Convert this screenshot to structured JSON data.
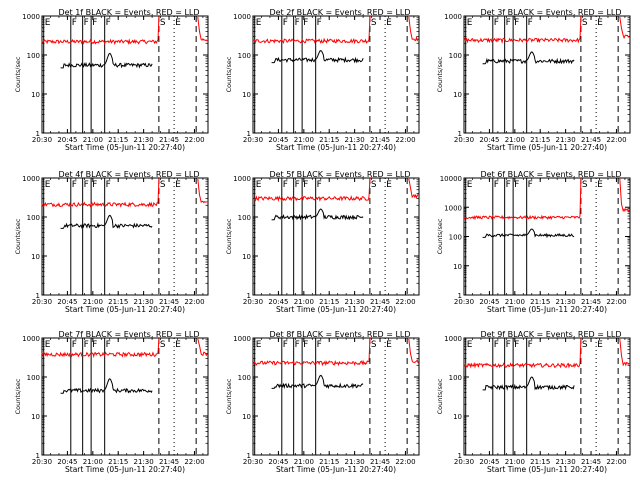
{
  "chart_data": [
    {
      "type": "line",
      "title": "Det 1f BLACK = Events, RED = LLD",
      "xlabel": "Start Time (05-Jun-11 20:27:40)",
      "ylabel": "Counts/sec",
      "ylim": [
        1,
        1000
      ],
      "yscale": "log",
      "xlim": [
        "20:30",
        "22:08"
      ],
      "x_ticks": [
        "20:30",
        "20:45",
        "21:00",
        "21:15",
        "21:30",
        "21:45",
        "22:00"
      ],
      "y_ticks": [
        "1",
        "10",
        "100",
        "1000"
      ],
      "markers": [
        {
          "label": "E",
          "x": "20:31"
        },
        {
          "label": "F",
          "x": "20:47"
        },
        {
          "label": "F",
          "x": "20:54"
        },
        {
          "label": "F",
          "x": "20:59"
        },
        {
          "label": "F",
          "x": "21:07"
        },
        {
          "label": "S",
          "x": "21:39"
        },
        {
          "label": "E",
          "x": "21:48"
        }
      ],
      "series": [
        {
          "name": "RED = LLD",
          "color": "#ff0000",
          "base": 220,
          "x": [
            "20:30",
            "21:38"
          ],
          "spike": {
            "x": "21:39",
            "peak": 900
          },
          "after": {
            "x": "22:04",
            "value": 250
          }
        },
        {
          "name": "BLACK = Events",
          "color": "#000000",
          "base": 55,
          "x": [
            "20:41",
            "21:35"
          ],
          "bump": {
            "x": "21:10",
            "peak": 110
          }
        }
      ]
    },
    {
      "type": "line",
      "title": "Det 2f BLACK = Events, RED = LLD",
      "xlabel": "Start Time (05-Jun-11 20:27:40)",
      "ylabel": "Counts/sec",
      "ylim": [
        1,
        1000
      ],
      "yscale": "log",
      "xlim": [
        "20:30",
        "22:08"
      ],
      "x_ticks": [
        "20:30",
        "20:45",
        "21:00",
        "21:15",
        "21:30",
        "21:45",
        "22:00"
      ],
      "y_ticks": [
        "1",
        "10",
        "100",
        "1000"
      ],
      "markers": [
        {
          "label": "E",
          "x": "20:31"
        },
        {
          "label": "F",
          "x": "20:47"
        },
        {
          "label": "F",
          "x": "20:54"
        },
        {
          "label": "F",
          "x": "20:59"
        },
        {
          "label": "F",
          "x": "21:07"
        },
        {
          "label": "S",
          "x": "21:39"
        },
        {
          "label": "E",
          "x": "21:48"
        }
      ],
      "series": [
        {
          "name": "RED = LLD",
          "color": "#ff0000",
          "base": 230,
          "x": [
            "20:30",
            "21:38"
          ],
          "spike": {
            "x": "21:39",
            "peak": 900
          },
          "after": {
            "x": "22:04",
            "value": 260
          }
        },
        {
          "name": "BLACK = Events",
          "color": "#000000",
          "base": 75,
          "x": [
            "20:41",
            "21:35"
          ],
          "bump": {
            "x": "21:10",
            "peak": 130
          }
        }
      ]
    },
    {
      "type": "line",
      "title": "Det 3f BLACK = Events, RED = LLD",
      "xlabel": "Start Time (05-Jun-11 20:27:40)",
      "ylabel": "Counts/sec",
      "ylim": [
        1,
        1000
      ],
      "yscale": "log",
      "xlim": [
        "20:30",
        "22:08"
      ],
      "x_ticks": [
        "20:30",
        "20:45",
        "21:00",
        "21:15",
        "21:30",
        "21:45",
        "22:00"
      ],
      "y_ticks": [
        "1",
        "10",
        "100",
        "1000"
      ],
      "markers": [
        {
          "label": "E",
          "x": "20:31"
        },
        {
          "label": "F",
          "x": "20:47"
        },
        {
          "label": "F",
          "x": "20:54"
        },
        {
          "label": "F",
          "x": "20:59"
        },
        {
          "label": "F",
          "x": "21:07"
        },
        {
          "label": "S",
          "x": "21:39"
        },
        {
          "label": "E",
          "x": "21:48"
        }
      ],
      "series": [
        {
          "name": "RED = LLD",
          "color": "#ff0000",
          "base": 240,
          "x": [
            "20:30",
            "21:38"
          ],
          "spike": {
            "x": "21:39",
            "peak": 900
          },
          "after": {
            "x": "22:04",
            "value": 300
          }
        },
        {
          "name": "BLACK = Events",
          "color": "#000000",
          "base": 70,
          "x": [
            "20:41",
            "21:35"
          ],
          "bump": {
            "x": "21:10",
            "peak": 120
          }
        }
      ]
    },
    {
      "type": "line",
      "title": "Det 4f BLACK = Events, RED = LLD",
      "xlabel": "Start Time (05-Jun-11 20:27:40)",
      "ylabel": "Counts/sec",
      "ylim": [
        1,
        1000
      ],
      "yscale": "log",
      "xlim": [
        "20:30",
        "22:08"
      ],
      "x_ticks": [
        "20:30",
        "20:45",
        "21:00",
        "21:15",
        "21:30",
        "21:45",
        "22:00"
      ],
      "y_ticks": [
        "1",
        "10",
        "100",
        "1000"
      ],
      "markers": [
        {
          "label": "E",
          "x": "20:31"
        },
        {
          "label": "F",
          "x": "20:47"
        },
        {
          "label": "F",
          "x": "20:54"
        },
        {
          "label": "F",
          "x": "20:59"
        },
        {
          "label": "F",
          "x": "21:07"
        },
        {
          "label": "S",
          "x": "21:39"
        },
        {
          "label": "E",
          "x": "21:48"
        }
      ],
      "series": [
        {
          "name": "RED = LLD",
          "color": "#ff0000",
          "base": 210,
          "x": [
            "20:30",
            "21:38"
          ],
          "spike": {
            "x": "21:39",
            "peak": 900
          },
          "after": {
            "x": "22:04",
            "value": 230
          }
        },
        {
          "name": "BLACK = Events",
          "color": "#000000",
          "base": 60,
          "x": [
            "20:41",
            "21:35"
          ],
          "bump": {
            "x": "21:10",
            "peak": 110
          }
        }
      ]
    },
    {
      "type": "line",
      "title": "Det 5f BLACK = Events, RED = LLD",
      "xlabel": "Start Time (05-Jun-11 20:27:40)",
      "ylabel": "Counts/sec",
      "ylim": [
        1,
        1000
      ],
      "yscale": "log",
      "xlim": [
        "20:30",
        "22:08"
      ],
      "x_ticks": [
        "20:30",
        "20:45",
        "21:00",
        "21:15",
        "21:30",
        "21:45",
        "22:00"
      ],
      "y_ticks": [
        "1",
        "10",
        "100",
        "1000"
      ],
      "markers": [
        {
          "label": "E",
          "x": "20:31"
        },
        {
          "label": "F",
          "x": "20:47"
        },
        {
          "label": "F",
          "x": "20:54"
        },
        {
          "label": "F",
          "x": "20:59"
        },
        {
          "label": "F",
          "x": "21:07"
        },
        {
          "label": "S",
          "x": "21:39"
        },
        {
          "label": "E",
          "x": "21:48"
        }
      ],
      "series": [
        {
          "name": "RED = LLD",
          "color": "#ff0000",
          "base": 300,
          "x": [
            "20:30",
            "21:38"
          ],
          "spike": {
            "x": "21:39",
            "peak": 900
          },
          "after": {
            "x": "22:04",
            "value": 350
          }
        },
        {
          "name": "BLACK = Events",
          "color": "#000000",
          "base": 100,
          "x": [
            "20:41",
            "21:35"
          ],
          "bump": {
            "x": "21:10",
            "peak": 160
          }
        }
      ]
    },
    {
      "type": "line",
      "title": "Det 6f BLACK = Events, RED = LLD",
      "xlabel": "Start Time (05-Jun-11 20:27:40)",
      "ylabel": "Counts/sec",
      "ylim": [
        1,
        10000
      ],
      "yscale": "log",
      "xlim": [
        "20:30",
        "22:08"
      ],
      "x_ticks": [
        "20:30",
        "20:45",
        "21:00",
        "21:15",
        "21:30",
        "21:45",
        "22:00"
      ],
      "y_ticks": [
        "1",
        "10",
        "100",
        "1000",
        "10000"
      ],
      "markers": [
        {
          "label": "E",
          "x": "20:31"
        },
        {
          "label": "F",
          "x": "20:47"
        },
        {
          "label": "F",
          "x": "20:54"
        },
        {
          "label": "F",
          "x": "20:59"
        },
        {
          "label": "F",
          "x": "21:07"
        },
        {
          "label": "S",
          "x": "21:39"
        },
        {
          "label": "E",
          "x": "21:48"
        }
      ],
      "series": [
        {
          "name": "RED = LLD",
          "color": "#ff0000",
          "base": 450,
          "x": [
            "20:30",
            "21:38"
          ],
          "spike": {
            "x": "21:39",
            "peak": 9000
          },
          "after": {
            "x": "22:04",
            "value": 800
          }
        },
        {
          "name": "BLACK = Events",
          "color": "#000000",
          "base": 110,
          "x": [
            "20:41",
            "21:35"
          ],
          "bump": {
            "x": "21:10",
            "peak": 180
          }
        }
      ]
    },
    {
      "type": "line",
      "title": "Det 7f BLACK = Events, RED = LLD",
      "xlabel": "Start Time (05-Jun-11 20:27:40)",
      "ylabel": "Counts/sec",
      "ylim": [
        1,
        1000
      ],
      "yscale": "log",
      "xlim": [
        "20:30",
        "22:08"
      ],
      "x_ticks": [
        "20:30",
        "20:45",
        "21:00",
        "21:15",
        "21:30",
        "21:45",
        "22:00"
      ],
      "y_ticks": [
        "1",
        "10",
        "100",
        "1000"
      ],
      "markers": [
        {
          "label": "E",
          "x": "20:31"
        },
        {
          "label": "F",
          "x": "20:47"
        },
        {
          "label": "F",
          "x": "20:54"
        },
        {
          "label": "F",
          "x": "20:59"
        },
        {
          "label": "F",
          "x": "21:07"
        },
        {
          "label": "S",
          "x": "21:39"
        },
        {
          "label": "E",
          "x": "21:48"
        }
      ],
      "series": [
        {
          "name": "RED = LLD",
          "color": "#ff0000",
          "base": 380,
          "x": [
            "20:30",
            "21:38"
          ],
          "spike": {
            "x": "21:39",
            "peak": 900
          },
          "after": {
            "x": "22:04",
            "value": 400
          }
        },
        {
          "name": "BLACK = Events",
          "color": "#000000",
          "base": 45,
          "x": [
            "20:41",
            "21:35"
          ],
          "bump": {
            "x": "21:10",
            "peak": 90
          }
        }
      ]
    },
    {
      "type": "line",
      "title": "Det 8f BLACK = Events, RED = LLD",
      "xlabel": "Start Time (05-Jun-11 20:27:40)",
      "ylabel": "Counts/sec",
      "ylim": [
        1,
        1000
      ],
      "yscale": "log",
      "xlim": [
        "20:30",
        "22:08"
      ],
      "x_ticks": [
        "20:30",
        "20:45",
        "21:00",
        "21:15",
        "21:30",
        "21:45",
        "22:00"
      ],
      "y_ticks": [
        "1",
        "10",
        "100",
        "1000"
      ],
      "markers": [
        {
          "label": "E",
          "x": "20:31"
        },
        {
          "label": "F",
          "x": "20:47"
        },
        {
          "label": "F",
          "x": "20:54"
        },
        {
          "label": "F",
          "x": "20:59"
        },
        {
          "label": "F",
          "x": "21:07"
        },
        {
          "label": "S",
          "x": "21:39"
        },
        {
          "label": "E",
          "x": "21:48"
        }
      ],
      "series": [
        {
          "name": "RED = LLD",
          "color": "#ff0000",
          "base": 230,
          "x": [
            "20:30",
            "21:38"
          ],
          "spike": {
            "x": "21:39",
            "peak": 900
          },
          "after": {
            "x": "22:04",
            "value": 250
          }
        },
        {
          "name": "BLACK = Events",
          "color": "#000000",
          "base": 60,
          "x": [
            "20:41",
            "21:35"
          ],
          "bump": {
            "x": "21:10",
            "peak": 110
          }
        }
      ]
    },
    {
      "type": "line",
      "title": "Det 9f BLACK = Events, RED = LLD",
      "xlabel": "Start Time (05-Jun-11 20:27:40)",
      "ylabel": "Counts/sec",
      "ylim": [
        1,
        1000
      ],
      "yscale": "log",
      "xlim": [
        "20:30",
        "22:08"
      ],
      "x_ticks": [
        "20:30",
        "20:45",
        "21:00",
        "21:15",
        "21:30",
        "21:45",
        "22:00"
      ],
      "y_ticks": [
        "1",
        "10",
        "100",
        "1000"
      ],
      "markers": [
        {
          "label": "E",
          "x": "20:31"
        },
        {
          "label": "F",
          "x": "20:47"
        },
        {
          "label": "F",
          "x": "20:54"
        },
        {
          "label": "F",
          "x": "20:59"
        },
        {
          "label": "F",
          "x": "21:07"
        },
        {
          "label": "S",
          "x": "21:39"
        },
        {
          "label": "E",
          "x": "21:48"
        }
      ],
      "series": [
        {
          "name": "RED = LLD",
          "color": "#ff0000",
          "base": 200,
          "x": [
            "20:30",
            "21:38"
          ],
          "spike": {
            "x": "21:39",
            "peak": 900
          },
          "after": {
            "x": "22:04",
            "value": 220
          }
        },
        {
          "name": "BLACK = Events",
          "color": "#000000",
          "base": 55,
          "x": [
            "20:41",
            "21:35"
          ],
          "bump": {
            "x": "21:10",
            "peak": 100
          }
        }
      ]
    }
  ]
}
